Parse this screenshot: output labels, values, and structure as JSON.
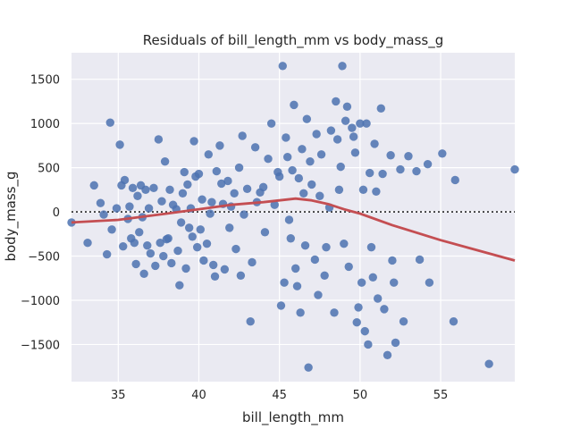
{
  "chart_data": {
    "type": "scatter",
    "title": "Residuals of bill_length_mm vs body_mass_g",
    "xlabel": "bill_length_mm",
    "ylabel": "body_mass_g",
    "xlim": [
      32.1,
      59.6
    ],
    "ylim": [
      -1920,
      1800
    ],
    "x_ticks": [
      35,
      40,
      45,
      50,
      55
    ],
    "y_ticks": [
      -1500,
      -1000,
      -500,
      0,
      500,
      1000,
      1500
    ],
    "grid": true,
    "background": "#eaeaf2",
    "colors": {
      "points": "#4c72b0",
      "lowess": "#c44e52",
      "zero_line": "#262626"
    },
    "zero_line": 0,
    "lowess": {
      "x": [
        32.1,
        35,
        38,
        40,
        42,
        44,
        45,
        46,
        47,
        48,
        49,
        50,
        52,
        55,
        57,
        59.6
      ],
      "y": [
        -120,
        -90,
        -20,
        30,
        80,
        110,
        130,
        150,
        130,
        90,
        30,
        -20,
        -150,
        -320,
        -420,
        -550
      ]
    },
    "points": [
      [
        32.1,
        -120
      ],
      [
        33.1,
        -350
      ],
      [
        33.5,
        300
      ],
      [
        33.9,
        100
      ],
      [
        34.1,
        -30
      ],
      [
        34.3,
        -480
      ],
      [
        34.5,
        1010
      ],
      [
        34.6,
        -200
      ],
      [
        34.9,
        40
      ],
      [
        35.1,
        760
      ],
      [
        35.2,
        300
      ],
      [
        35.3,
        -390
      ],
      [
        35.4,
        360
      ],
      [
        35.6,
        -80
      ],
      [
        35.7,
        60
      ],
      [
        35.8,
        -300
      ],
      [
        35.9,
        270
      ],
      [
        36.0,
        -350
      ],
      [
        36.1,
        -590
      ],
      [
        36.2,
        180
      ],
      [
        36.3,
        -230
      ],
      [
        36.4,
        300
      ],
      [
        36.5,
        -60
      ],
      [
        36.6,
        -700
      ],
      [
        36.7,
        250
      ],
      [
        36.8,
        -380
      ],
      [
        36.9,
        40
      ],
      [
        37.0,
        -470
      ],
      [
        37.2,
        270
      ],
      [
        37.3,
        -610
      ],
      [
        37.5,
        820
      ],
      [
        37.6,
        -350
      ],
      [
        37.7,
        120
      ],
      [
        37.8,
        -500
      ],
      [
        37.9,
        570
      ],
      [
        38.0,
        -310
      ],
      [
        38.1,
        -300
      ],
      [
        38.2,
        250
      ],
      [
        38.3,
        -580
      ],
      [
        38.4,
        80
      ],
      [
        38.6,
        30
      ],
      [
        38.7,
        -440
      ],
      [
        38.8,
        -830
      ],
      [
        38.9,
        -120
      ],
      [
        39.0,
        210
      ],
      [
        39.1,
        450
      ],
      [
        39.2,
        -640
      ],
      [
        39.3,
        310
      ],
      [
        39.4,
        -180
      ],
      [
        39.5,
        40
      ],
      [
        39.6,
        -280
      ],
      [
        39.7,
        800
      ],
      [
        39.8,
        400
      ],
      [
        39.9,
        -400
      ],
      [
        40.0,
        430
      ],
      [
        40.1,
        -200
      ],
      [
        40.2,
        140
      ],
      [
        40.3,
        -550
      ],
      [
        40.5,
        -360
      ],
      [
        40.6,
        650
      ],
      [
        40.7,
        -20
      ],
      [
        40.8,
        110
      ],
      [
        40.9,
        -600
      ],
      [
        41.0,
        -730
      ],
      [
        41.1,
        460
      ],
      [
        41.3,
        750
      ],
      [
        41.4,
        320
      ],
      [
        41.5,
        90
      ],
      [
        41.6,
        -650
      ],
      [
        41.8,
        350
      ],
      [
        41.9,
        -180
      ],
      [
        42.0,
        60
      ],
      [
        42.2,
        210
      ],
      [
        42.3,
        -420
      ],
      [
        42.5,
        500
      ],
      [
        42.6,
        -720
      ],
      [
        42.7,
        860
      ],
      [
        42.8,
        -30
      ],
      [
        43.0,
        260
      ],
      [
        43.2,
        -1240
      ],
      [
        43.3,
        -570
      ],
      [
        43.5,
        730
      ],
      [
        43.6,
        110
      ],
      [
        43.8,
        220
      ],
      [
        44.0,
        280
      ],
      [
        44.1,
        -230
      ],
      [
        44.3,
        600
      ],
      [
        44.5,
        1000
      ],
      [
        44.7,
        80
      ],
      [
        44.9,
        450
      ],
      [
        45.0,
        400
      ],
      [
        45.1,
        -1060
      ],
      [
        45.2,
        1650
      ],
      [
        45.3,
        -800
      ],
      [
        45.4,
        840
      ],
      [
        45.5,
        620
      ],
      [
        45.6,
        -90
      ],
      [
        45.7,
        -300
      ],
      [
        45.8,
        470
      ],
      [
        45.9,
        1210
      ],
      [
        46.0,
        -640
      ],
      [
        46.1,
        -840
      ],
      [
        46.2,
        380
      ],
      [
        46.3,
        -1140
      ],
      [
        46.4,
        710
      ],
      [
        46.5,
        210
      ],
      [
        46.6,
        -380
      ],
      [
        46.7,
        1050
      ],
      [
        46.8,
        -1760
      ],
      [
        46.9,
        570
      ],
      [
        47.0,
        310
      ],
      [
        47.2,
        -540
      ],
      [
        47.3,
        880
      ],
      [
        47.4,
        -940
      ],
      [
        47.5,
        180
      ],
      [
        47.6,
        650
      ],
      [
        47.8,
        -720
      ],
      [
        47.9,
        -400
      ],
      [
        48.1,
        50
      ],
      [
        48.2,
        920
      ],
      [
        48.4,
        -1140
      ],
      [
        48.5,
        1250
      ],
      [
        48.6,
        820
      ],
      [
        48.7,
        250
      ],
      [
        48.8,
        510
      ],
      [
        48.9,
        1650
      ],
      [
        49.0,
        -360
      ],
      [
        49.1,
        1030
      ],
      [
        49.2,
        1190
      ],
      [
        49.3,
        -620
      ],
      [
        49.5,
        950
      ],
      [
        49.6,
        850
      ],
      [
        49.7,
        670
      ],
      [
        49.8,
        -1250
      ],
      [
        49.9,
        -1080
      ],
      [
        50.0,
        1000
      ],
      [
        50.1,
        -800
      ],
      [
        50.2,
        250
      ],
      [
        50.3,
        -1350
      ],
      [
        50.4,
        1000
      ],
      [
        50.5,
        -1500
      ],
      [
        50.6,
        440
      ],
      [
        50.7,
        -400
      ],
      [
        50.8,
        -740
      ],
      [
        50.9,
        770
      ],
      [
        51.0,
        230
      ],
      [
        51.1,
        -980
      ],
      [
        51.3,
        1170
      ],
      [
        51.4,
        430
      ],
      [
        51.5,
        -1100
      ],
      [
        51.7,
        -1620
      ],
      [
        51.9,
        640
      ],
      [
        52.0,
        -550
      ],
      [
        52.1,
        -800
      ],
      [
        52.2,
        -1480
      ],
      [
        52.5,
        480
      ],
      [
        52.7,
        -1240
      ],
      [
        53.0,
        630
      ],
      [
        53.5,
        460
      ],
      [
        53.7,
        -540
      ],
      [
        54.2,
        540
      ],
      [
        54.3,
        -800
      ],
      [
        55.1,
        660
      ],
      [
        55.8,
        -1240
      ],
      [
        55.9,
        360
      ],
      [
        58.0,
        -1720
      ],
      [
        59.6,
        480
      ]
    ]
  }
}
